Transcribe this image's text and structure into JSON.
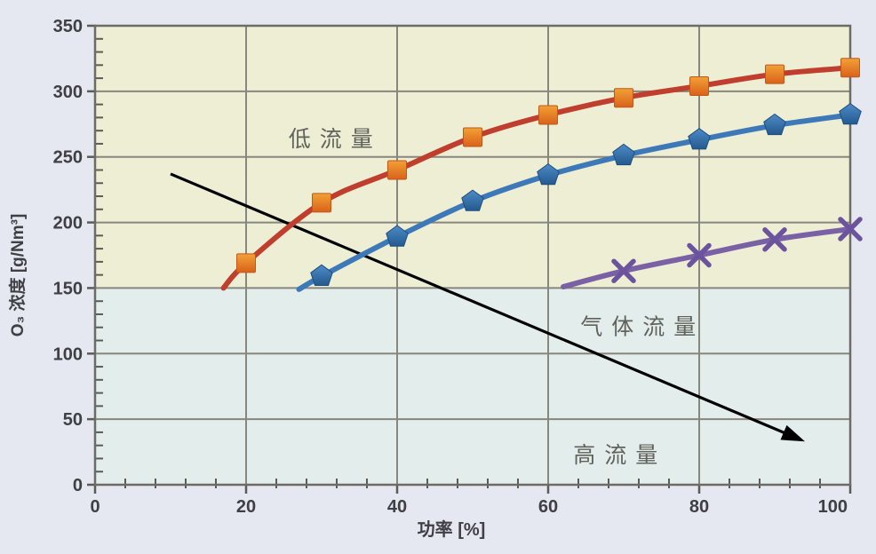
{
  "colors": {
    "outer_background": "#e5e7f1",
    "plot_region_upper": "#edeed3",
    "plot_region_lower": "#e3edec",
    "gridline": "#87877e",
    "axis_border": "#6c6c66",
    "tick": "#5c5c57",
    "tick_label": "#3f4045",
    "axis_title": "#3f4045",
    "annotation_text": "#62625c",
    "arrow": "#000000",
    "marker_square_top": "#f2a136",
    "marker_square_bottom": "#d9611a",
    "marker_pentagon_top": "#4f8bc8",
    "marker_pentagon_bottom": "#235a8e"
  },
  "chart_data": {
    "type": "line",
    "title": "",
    "xlabel": "功率 [%]",
    "ylabel": "O₃ 浓度 [g/Nm³]",
    "xlim": [
      0,
      100
    ],
    "ylim": [
      0,
      350
    ],
    "x_major_ticks": [
      0,
      20,
      40,
      60,
      80,
      100
    ],
    "x_minor_step": 4,
    "y_major_ticks": [
      0,
      50,
      100,
      150,
      200,
      250,
      300,
      350
    ],
    "y_minor_step": 10,
    "grid": "major gridlines on, both axes",
    "legend_position": "none",
    "regions": [
      {
        "name": "upper",
        "y_from": 150,
        "y_to": 350,
        "color": "#edeed3"
      },
      {
        "name": "lower",
        "y_from": 0,
        "y_to": 150,
        "color": "#e3edec"
      }
    ],
    "series": [
      {
        "name": "red-squares",
        "line_color": "#bf3e2d",
        "marker": "square",
        "marker_color": "#e8821e",
        "line_start": [
          17,
          150
        ],
        "x": [
          20,
          30,
          40,
          50,
          60,
          70,
          80,
          90,
          100
        ],
        "values": [
          169,
          215,
          240,
          265,
          282,
          295,
          304,
          313,
          318
        ]
      },
      {
        "name": "blue-pentagons",
        "line_color": "#3d79b8",
        "marker": "pentagon",
        "marker_color": "#2f6cab",
        "line_start": [
          27,
          149
        ],
        "x": [
          30,
          40,
          50,
          60,
          70,
          80,
          90,
          100
        ],
        "values": [
          159,
          189,
          216,
          236,
          251,
          263,
          274,
          282
        ]
      },
      {
        "name": "purple-x",
        "line_color": "#7a61a5",
        "marker": "x",
        "marker_color": "#6b539d",
        "line_start": [
          62,
          151
        ],
        "x": [
          70,
          80,
          90,
          100
        ],
        "values": [
          163,
          175,
          187,
          195
        ]
      }
    ],
    "annotations": [
      {
        "name": "low-flow-label",
        "text": "低流量",
        "x": 31.8,
        "y": 264
      },
      {
        "name": "gas-flow-label",
        "text": "气体流量",
        "x": 72.5,
        "y": 121
      },
      {
        "name": "high-flow-label",
        "text": "高流量",
        "x": 69.5,
        "y": 23
      }
    ],
    "arrow": {
      "from": [
        10,
        237
      ],
      "to": [
        94,
        33
      ]
    }
  }
}
